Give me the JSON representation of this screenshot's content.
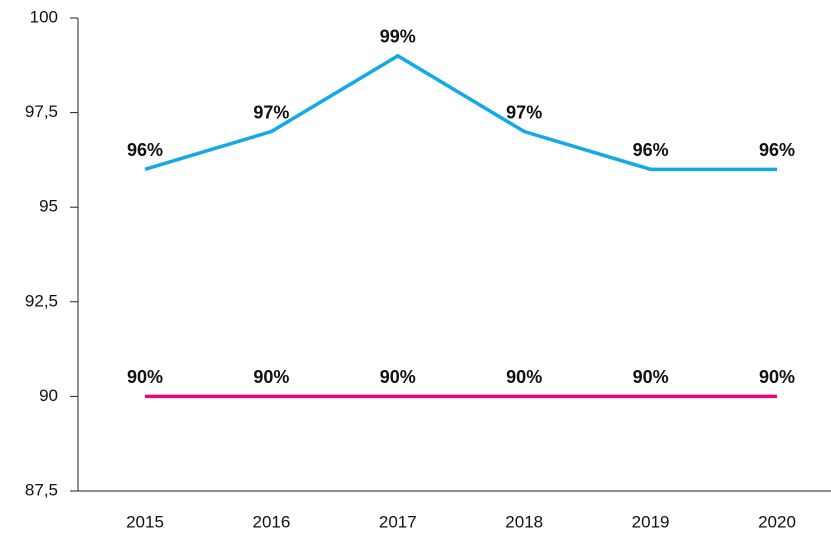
{
  "chart_data": {
    "type": "line",
    "categories": [
      "2015",
      "2016",
      "2017",
      "2018",
      "2019",
      "2020"
    ],
    "series": [
      {
        "color": "#12a9e6",
        "values": [
          96,
          97,
          99,
          97,
          96,
          96
        ],
        "value_labels": [
          "96%",
          "97%",
          "99%",
          "97%",
          "96%",
          "96%"
        ]
      },
      {
        "color": "#e5097f",
        "values": [
          90,
          90,
          90,
          90,
          90,
          90
        ],
        "value_labels": [
          "90%",
          "90%",
          "90%",
          "90%",
          "90%",
          "90%"
        ]
      }
    ],
    "ylim": [
      87.5,
      100
    ],
    "yticks": [
      {
        "value": 87.5,
        "label": "87,5"
      },
      90,
      {
        "value": 92.5,
        "label": "92,5"
      },
      95,
      {
        "value": 97.5,
        "label": "97,5"
      },
      100
    ]
  }
}
